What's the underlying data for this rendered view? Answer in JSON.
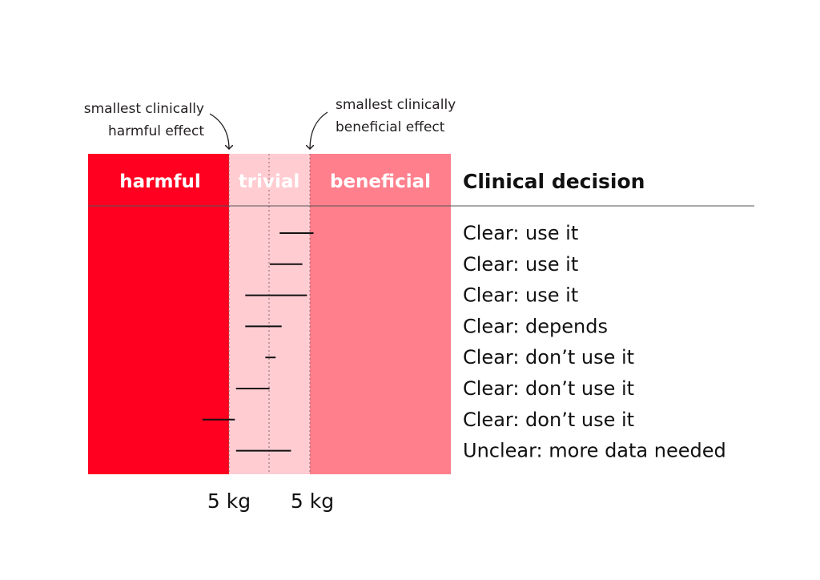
{
  "annotations": {
    "harmful": [
      "smallest clinically",
      "harmful effect"
    ],
    "beneficial": [
      "smallest clinically",
      "beneficial effect"
    ]
  },
  "zones": {
    "harmful": "harmful",
    "trivial": "trivial",
    "beneficial": "beneficial"
  },
  "colors": {
    "harmful": "#ff0020",
    "trivial": "#ffccd2",
    "beneficial": "#ff7f8c",
    "interval": "#111111"
  },
  "header": "Clinical decision",
  "thresholds": [
    "5 kg",
    "5 kg"
  ],
  "intervals": [
    {
      "lower": 0.132,
      "upper": 0.555,
      "decision": "Clear: use it"
    },
    {
      "lower": 0.009,
      "upper": 0.416,
      "decision": "Clear: use it"
    },
    {
      "lower": -0.297,
      "upper": 0.473,
      "decision": "Clear: use it"
    },
    {
      "lower": -0.297,
      "upper": 0.157,
      "decision": "Clear: depends"
    },
    {
      "lower": -0.046,
      "upper": 0.082,
      "decision": "Clear: don’t use it"
    },
    {
      "lower": -0.412,
      "upper": 0.006,
      "decision": "Clear: don’t use it"
    },
    {
      "lower": -0.832,
      "upper": -0.427,
      "decision": "Clear: don’t use it"
    },
    {
      "lower": -0.412,
      "upper": 0.274,
      "decision": "Unclear: more data needed"
    }
  ]
}
